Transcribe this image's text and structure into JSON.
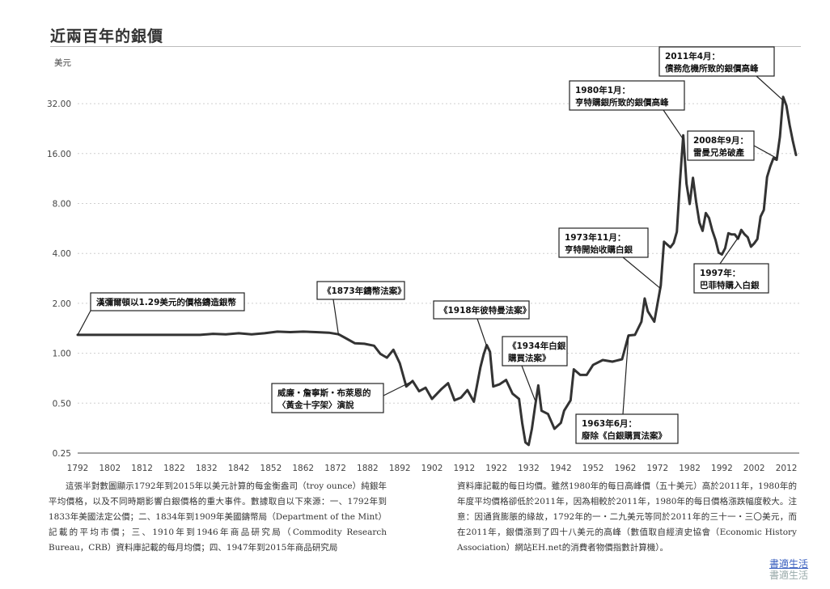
{
  "title": "近兩百年的銀價",
  "notes": {
    "left": "這張半對數圖顯示1792年到2015年以美元計算的每金衡盎司（troy ounce）純銀年平均價格，以及不同時期影響白銀價格的重大事件。數據取自以下來源：一、1792年到1833年美國法定公價；二、1834年到1909年美國鑄幣局（Department of the Mint）記載的平均市價；三、1910年到1946年商品研究局（Commodity Research Bureau，CRB）資料庫記載的每月均價；四、1947年到2015年商品研究局",
    "right": "資料庫記載的每日均價。雖然1980年的每日高峰價（五十美元）高於2011年，1980年的年度平均價格卻低於2011年，因為相較於2011年，1980年的每日價格漲跌幅度較大。注意：因通貨膨脹的緣故，1792年的一・二九美元等同於2011年的三十一・三〇美元，而在2011年，銀價漲到了四十八美元的高峰（數值取自經濟史協會（Economic History Association）網站EH.net的消費者物價指數計算機）。"
  },
  "watermark": {
    "line1": "書適生活",
    "line2": "書適生活"
  },
  "chart_data": {
    "type": "line",
    "ylabel": "美元",
    "yscale": "log2",
    "ylim": [
      0.25,
      45
    ],
    "xlim": [
      1792,
      2016
    ],
    "y_ticks": [
      {
        "v": 0.25,
        "label": "0.25"
      },
      {
        "v": 0.5,
        "label": "0.50"
      },
      {
        "v": 1,
        "label": "1.00"
      },
      {
        "v": 2,
        "label": "2.00"
      },
      {
        "v": 4,
        "label": "4.00"
      },
      {
        "v": 8,
        "label": "8.00"
      },
      {
        "v": 16,
        "label": "16.00"
      },
      {
        "v": 32,
        "label": "32.00"
      }
    ],
    "x_ticks": [
      1792,
      1802,
      1812,
      1822,
      1832,
      1842,
      1852,
      1862,
      1872,
      1882,
      1892,
      1902,
      1912,
      1922,
      1932,
      1942,
      1952,
      1962,
      1972,
      1982,
      1992,
      2002,
      2012
    ],
    "grid": true,
    "series": [
      {
        "color": "#333333",
        "points": [
          [
            1792,
            1.29
          ],
          [
            1830,
            1.29
          ],
          [
            1834,
            1.31
          ],
          [
            1838,
            1.3
          ],
          [
            1842,
            1.32
          ],
          [
            1846,
            1.3
          ],
          [
            1850,
            1.32
          ],
          [
            1854,
            1.35
          ],
          [
            1858,
            1.34
          ],
          [
            1862,
            1.35
          ],
          [
            1866,
            1.34
          ],
          [
            1870,
            1.33
          ],
          [
            1873,
            1.3
          ],
          [
            1875,
            1.24
          ],
          [
            1878,
            1.15
          ],
          [
            1881,
            1.14
          ],
          [
            1884,
            1.11
          ],
          [
            1886,
            0.99
          ],
          [
            1888,
            0.94
          ],
          [
            1890,
            1.05
          ],
          [
            1892,
            0.87
          ],
          [
            1894,
            0.63
          ],
          [
            1896,
            0.68
          ],
          [
            1898,
            0.59
          ],
          [
            1900,
            0.62
          ],
          [
            1902,
            0.53
          ],
          [
            1905,
            0.61
          ],
          [
            1907,
            0.66
          ],
          [
            1909,
            0.52
          ],
          [
            1911,
            0.54
          ],
          [
            1913,
            0.6
          ],
          [
            1915,
            0.51
          ],
          [
            1917,
            0.82
          ],
          [
            1918,
            0.98
          ],
          [
            1919,
            1.12
          ],
          [
            1920,
            1.02
          ],
          [
            1921,
            0.63
          ],
          [
            1923,
            0.65
          ],
          [
            1925,
            0.69
          ],
          [
            1927,
            0.57
          ],
          [
            1929,
            0.53
          ],
          [
            1930,
            0.38
          ],
          [
            1931,
            0.29
          ],
          [
            1932,
            0.28
          ],
          [
            1933,
            0.35
          ],
          [
            1934,
            0.48
          ],
          [
            1935,
            0.64
          ],
          [
            1936,
            0.45
          ],
          [
            1938,
            0.43
          ],
          [
            1940,
            0.35
          ],
          [
            1942,
            0.38
          ],
          [
            1943,
            0.45
          ],
          [
            1945,
            0.52
          ],
          [
            1946,
            0.8
          ],
          [
            1948,
            0.74
          ],
          [
            1950,
            0.74
          ],
          [
            1952,
            0.85
          ],
          [
            1955,
            0.91
          ],
          [
            1958,
            0.89
          ],
          [
            1960,
            0.91
          ],
          [
            1961,
            0.92
          ],
          [
            1963,
            1.28
          ],
          [
            1965,
            1.29
          ],
          [
            1967,
            1.55
          ],
          [
            1968,
            2.14
          ],
          [
            1969,
            1.79
          ],
          [
            1971,
            1.55
          ],
          [
            1973,
            2.56
          ],
          [
            1974,
            4.71
          ],
          [
            1976,
            4.35
          ],
          [
            1977,
            4.62
          ],
          [
            1978,
            5.4
          ],
          [
            1979,
            11.09
          ],
          [
            1980,
            20.63
          ],
          [
            1981,
            10.52
          ],
          [
            1982,
            7.95
          ],
          [
            1983,
            11.44
          ],
          [
            1984,
            8.14
          ],
          [
            1985,
            6.14
          ],
          [
            1986,
            5.47
          ],
          [
            1987,
            7.01
          ],
          [
            1988,
            6.53
          ],
          [
            1989,
            5.5
          ],
          [
            1990,
            4.82
          ],
          [
            1991,
            4.04
          ],
          [
            1992,
            3.94
          ],
          [
            1993,
            4.3
          ],
          [
            1994,
            5.29
          ],
          [
            1995,
            5.2
          ],
          [
            1996,
            5.2
          ],
          [
            1997,
            4.9
          ],
          [
            1998,
            5.54
          ],
          [
            1999,
            5.22
          ],
          [
            2000,
            5.0
          ],
          [
            2001,
            4.39
          ],
          [
            2002,
            4.6
          ],
          [
            2003,
            4.88
          ],
          [
            2004,
            6.67
          ],
          [
            2005,
            7.31
          ],
          [
            2006,
            11.55
          ],
          [
            2007,
            13.38
          ],
          [
            2008,
            14.99
          ],
          [
            2009,
            14.67
          ],
          [
            2010,
            20.19
          ],
          [
            2011,
            35.12
          ],
          [
            2012,
            31.15
          ],
          [
            2013,
            23.79
          ],
          [
            2014,
            19.08
          ],
          [
            2015,
            15.68
          ]
        ]
      }
    ],
    "annotations": [
      {
        "lines": [
          "漢彌爾頓以1.29美元的價格鑄造銀幣"
        ]
      },
      {
        "lines": [
          "《1873年鑄幣法案》"
        ]
      },
      {
        "lines": [
          "威廉・詹寧斯・布萊恩的",
          "〈黃金十字架〉演說"
        ]
      },
      {
        "lines": [
          "《1918年彼特曼法案》"
        ]
      },
      {
        "lines": [
          "《1934年白銀",
          "購買法案》"
        ]
      },
      {
        "lines": [
          "1963年6月：",
          "廢除《白銀購買法案》"
        ]
      },
      {
        "lines": [
          "1973年11月：",
          "亨特開始收購白銀"
        ]
      },
      {
        "lines": [
          "1980年1月：",
          "亨特購銀所致的銀價高峰"
        ]
      },
      {
        "lines": [
          "2011年4月：",
          "債務危機所致的銀價高峰"
        ]
      },
      {
        "lines": [
          "2008年9月：",
          "雷曼兄弟破產"
        ]
      },
      {
        "lines": [
          "1997年：",
          "巴菲特購入白銀"
        ]
      }
    ]
  }
}
